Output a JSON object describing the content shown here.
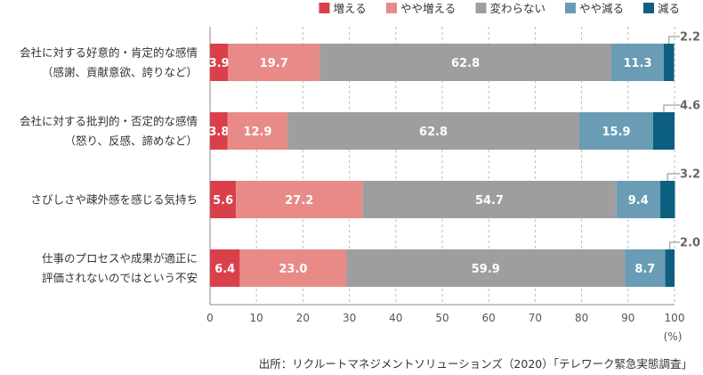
{
  "chart_data": {
    "type": "bar",
    "orientation": "horizontal",
    "stacked": true,
    "categories": [
      [
        "会社に対する好意的・肯定的な感情",
        "（感謝、貢献意欲、誇りなど）"
      ],
      [
        "会社に対する批判的・否定的な感情",
        "（怒り、反感、諦めなど）"
      ],
      [
        "さびしさや疎外感を感じる気持ち"
      ],
      [
        "仕事のプロセスや成果が適正に",
        "評価されないのではという不安"
      ]
    ],
    "series": [
      {
        "name": "増える",
        "color": "#d9404a",
        "values": [
          3.9,
          3.8,
          5.6,
          6.4
        ]
      },
      {
        "name": "やや増える",
        "color": "#e88a87",
        "values": [
          19.7,
          12.9,
          27.2,
          23.0
        ]
      },
      {
        "name": "変わらない",
        "color": "#9e9e9e",
        "values": [
          62.8,
          62.8,
          54.7,
          59.9
        ]
      },
      {
        "name": "やや減る",
        "color": "#6a9db5",
        "values": [
          11.3,
          15.9,
          9.4,
          8.7
        ]
      },
      {
        "name": "減る",
        "color": "#0d5f7f",
        "values": [
          2.2,
          4.6,
          3.2,
          2.0
        ]
      }
    ],
    "xlim": [
      0,
      100
    ],
    "xticks": [
      "0",
      "10",
      "20",
      "30",
      "40",
      "50",
      "60",
      "70",
      "80",
      "90",
      "100"
    ],
    "unit": "(%)",
    "grid": true,
    "legend_position": "top-right",
    "outside_label_series": "減る"
  },
  "source": "出所：リクルートマネジメントソリューションズ（2020）「テレワーク緊急実態調査」"
}
